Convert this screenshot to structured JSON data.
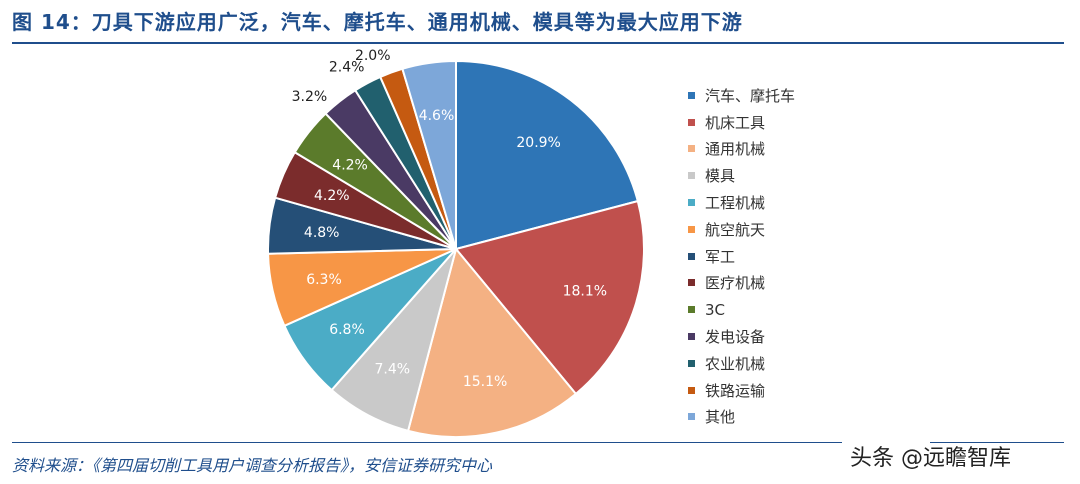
{
  "title": "图 14：刀具下游应用广泛，汽车、摩托车、通用机械、模具等为最大应用下游",
  "source": "资料来源：《第四届切削工具用户调查分析报告》，安信证券研究中心",
  "watermark": "头条 @远瞻智库",
  "chart_data": {
    "type": "pie",
    "categories": [
      "汽车、摩托车",
      "机床工具",
      "通用机械",
      "模具",
      "工程机械",
      "航空航天",
      "军工",
      "医疗机械",
      "3C",
      "发电设备",
      "农业机械",
      "铁路运输",
      "其他"
    ],
    "values": [
      20.9,
      18.1,
      15.1,
      7.4,
      6.8,
      6.3,
      4.8,
      4.2,
      4.2,
      3.2,
      2.4,
      2.0,
      4.6
    ],
    "labels": [
      "20.9%",
      "18.1%",
      "15.1%",
      "7.4%",
      "6.8%",
      "6.3%",
      "4.8%",
      "4.2%",
      "4.2%",
      "3.2%",
      "2.4%",
      "2.0%",
      "4.6%"
    ],
    "colors": [
      "#2e75b6",
      "#c0504d",
      "#f4b183",
      "#c9c9c9",
      "#4bacc6",
      "#f79646",
      "#254f77",
      "#7b2c2c",
      "#5b7b2b",
      "#4a3a64",
      "#21606e",
      "#c55a11",
      "#7da7d9"
    ],
    "legend_position": "right"
  }
}
